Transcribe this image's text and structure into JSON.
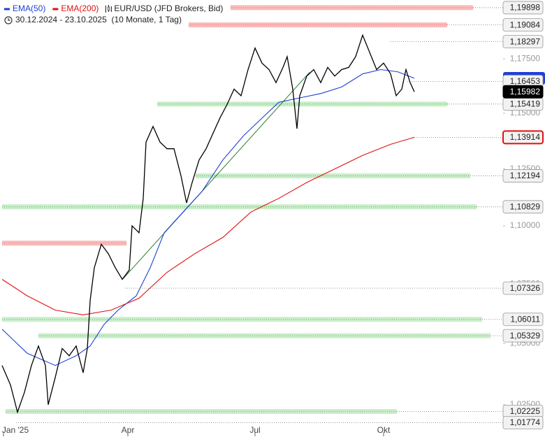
{
  "chart_data": {
    "type": "line",
    "subtitle": "30.12.2024 - 23.10.2025  (10 Monate, 1 Tag)",
    "log_scale": true,
    "grid": false,
    "xlim": [
      0,
      388.5
    ],
    "ylim": [
      1.0162,
      1.2026
    ],
    "xticks": [
      {
        "value": 1,
        "label": "Jan '25"
      },
      {
        "value": 90,
        "label": "Apr"
      },
      {
        "value": 181,
        "label": "Jul"
      },
      {
        "value": 273,
        "label": "Okt"
      }
    ],
    "yticks": [
      {
        "value": 1.175,
        "label": "1,17500"
      },
      {
        "value": 1.15,
        "label": "1,15000"
      },
      {
        "value": 1.125,
        "label": "1,12500"
      },
      {
        "value": 1.1,
        "label": "1,10000"
      },
      {
        "value": 1.075,
        "label": "1,07500"
      },
      {
        "value": 1.05,
        "label": "1,05000"
      },
      {
        "value": 1.025,
        "label": "1,02500"
      }
    ],
    "series": [
      {
        "name": "EMA(50)",
        "color": "#1f3fd6",
        "x": [
          0,
          18,
          38,
          53,
          63,
          73,
          83,
          96,
          106,
          116,
          131,
          143,
          158,
          173,
          188,
          198,
          213,
          228,
          243,
          258,
          271,
          283,
          295
        ],
        "values": [
          1.056,
          1.046,
          1.041,
          1.045,
          1.049,
          1.058,
          1.064,
          1.07,
          1.082,
          1.097,
          1.107,
          1.115,
          1.129,
          1.14,
          1.149,
          1.155,
          1.157,
          1.159,
          1.162,
          1.168,
          1.17,
          1.169,
          1.166
        ]
      },
      {
        "name": "EMA(200)",
        "color": "#e01010",
        "last_label": "1,13914",
        "x": [
          0,
          18,
          38,
          58,
          78,
          98,
          118,
          138,
          158,
          178,
          198,
          218,
          238,
          258,
          278,
          295
        ],
        "values": [
          1.077,
          1.07,
          1.064,
          1.062,
          1.064,
          1.069,
          1.08,
          1.088,
          1.095,
          1.106,
          1.112,
          1.119,
          1.125,
          1.131,
          1.136,
          1.13914
        ]
      },
      {
        "name": "EUR/USD (JFD Brokers, Bid)",
        "color": "#000000",
        "last_label": "1,15982",
        "x": [
          0,
          6,
          11,
          16,
          21,
          26,
          31,
          33,
          38,
          43,
          48,
          53,
          58,
          61,
          63,
          66,
          71,
          76,
          81,
          86,
          91,
          93,
          98,
          101,
          103,
          108,
          113,
          118,
          123,
          128,
          132,
          136,
          141,
          146,
          151,
          156,
          161,
          166,
          171,
          176,
          181,
          186,
          191,
          196,
          201,
          204,
          208,
          211,
          213,
          218,
          223,
          228,
          233,
          238,
          243,
          248,
          253,
          258,
          263,
          268,
          273,
          278,
          282,
          286,
          289,
          292,
          295
        ],
        "values": [
          1.041,
          1.033,
          1.022,
          1.03,
          1.041,
          1.049,
          1.041,
          1.025,
          1.036,
          1.048,
          1.045,
          1.049,
          1.038,
          1.048,
          1.068,
          1.082,
          1.092,
          1.088,
          1.082,
          1.077,
          1.081,
          1.1,
          1.097,
          1.112,
          1.137,
          1.144,
          1.137,
          1.134,
          1.134,
          1.122,
          1.11,
          1.119,
          1.129,
          1.134,
          1.141,
          1.148,
          1.154,
          1.161,
          1.158,
          1.17,
          1.18,
          1.173,
          1.17,
          1.164,
          1.171,
          1.176,
          1.161,
          1.143,
          1.158,
          1.167,
          1.17,
          1.164,
          1.171,
          1.167,
          1.17,
          1.171,
          1.176,
          1.186,
          1.178,
          1.17,
          1.173,
          1.168,
          1.158,
          1.161,
          1.17,
          1.164,
          1.15982
        ]
      }
    ],
    "trendline": {
      "color": "#2e7d32",
      "x": [
        86,
        220
      ],
      "values": [
        1.0769,
        1.1687
      ]
    },
    "levels": [
      {
        "value": 1.19898,
        "value_label": "1,19898",
        "kind": "resistance",
        "from": 163.5,
        "to": 337
      },
      {
        "value": 1.19084,
        "value_label": "1,19084",
        "kind": "resistance",
        "from": 133.5,
        "to": 318.5
      },
      {
        "value": 1.18297,
        "value_label": "1,18297",
        "kind": "line",
        "from": 278,
        "to": 278
      },
      {
        "value": 1.16453,
        "value_label": "1,16453",
        "kind": "line",
        "from": 290,
        "to": 290
      },
      {
        "value": 1.15419,
        "value_label": "1,15419",
        "kind": "support",
        "from": 111,
        "to": 318.5
      },
      {
        "value": 1.12194,
        "value_label": "1,12194",
        "kind": "support",
        "from": 138.5,
        "to": 335
      },
      {
        "value": 1.10829,
        "value_label": "1,10829",
        "kind": "support",
        "from": 0,
        "to": 339.5
      },
      {
        "value": 1.0925,
        "value_label": null,
        "kind": "resistance",
        "from": 0,
        "to": 89
      },
      {
        "value": 1.07326,
        "value_label": "1,07326",
        "kind": "line",
        "from": 88,
        "to": 88
      },
      {
        "value": 1.06011,
        "value_label": "1,06011",
        "kind": "support",
        "from": 0,
        "to": 343.5
      },
      {
        "value": 1.05329,
        "value_label": "1,05329",
        "kind": "support",
        "from": 26,
        "to": 349.5
      },
      {
        "value": 1.02225,
        "value_label": "1,02225",
        "kind": "support",
        "from": 2.5,
        "to": 282.5
      },
      {
        "value": 1.01774,
        "value_label": "1,01774",
        "kind": "line",
        "from": 10,
        "to": 10
      }
    ]
  }
}
